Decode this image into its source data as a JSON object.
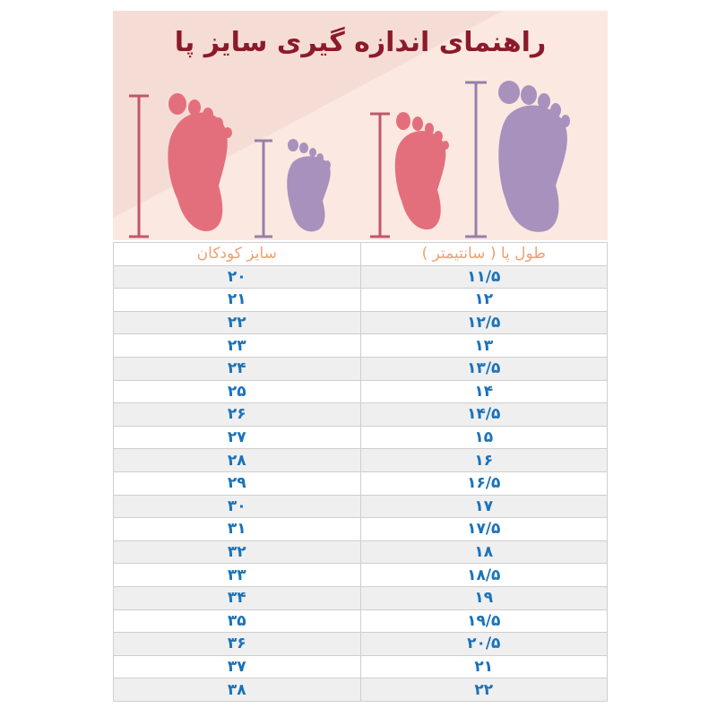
{
  "title": "راهنمای اندازه گیری سایز پا",
  "colors": {
    "title": "#8c1a2a",
    "header_text": "#f0a070",
    "value_text": "#1a72b8",
    "pink_foot": "#e46f7c",
    "purple_foot": "#a891bd"
  },
  "table": {
    "headers": {
      "foot_length": "طول پا ( سانتیمتر )",
      "kids_size": "سایز کودکان"
    },
    "rows": [
      {
        "length": "۱۱/۵",
        "size": "۲۰"
      },
      {
        "length": "۱۲",
        "size": "۲۱"
      },
      {
        "length": "۱۲/۵",
        "size": "۲۲"
      },
      {
        "length": "۱۳",
        "size": "۲۳"
      },
      {
        "length": "۱۳/۵",
        "size": "۲۴"
      },
      {
        "length": "۱۴",
        "size": "۲۵"
      },
      {
        "length": "۱۴/۵",
        "size": "۲۶"
      },
      {
        "length": "۱۵",
        "size": "۲۷"
      },
      {
        "length": "۱۶",
        "size": "۲۸"
      },
      {
        "length": "۱۶/۵",
        "size": "۲۹"
      },
      {
        "length": "۱۷",
        "size": "۳۰"
      },
      {
        "length": "۱۷/۵",
        "size": "۳۱"
      },
      {
        "length": "۱۸",
        "size": "۳۲"
      },
      {
        "length": "۱۸/۵",
        "size": "۳۳"
      },
      {
        "length": "۱۹",
        "size": "۳۴"
      },
      {
        "length": "۱۹/۵",
        "size": "۳۵"
      },
      {
        "length": "۲۰/۵",
        "size": "۳۶"
      },
      {
        "length": "۲۱",
        "size": "۳۷"
      },
      {
        "length": "۲۲",
        "size": "۳۸"
      }
    ]
  }
}
